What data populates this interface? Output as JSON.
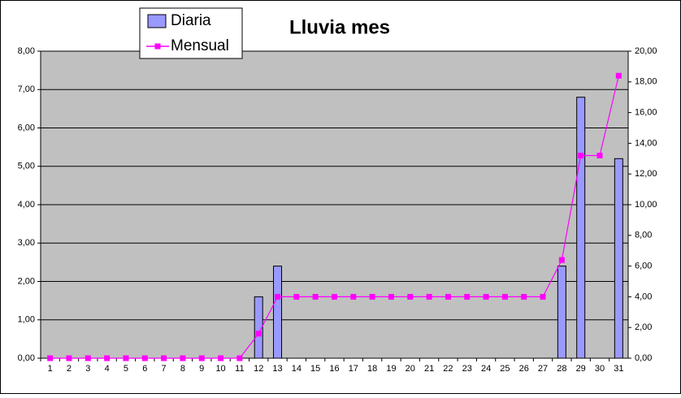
{
  "chart_data": {
    "type": "bar",
    "title": "Lluvia mes",
    "categories": [
      "1",
      "2",
      "3",
      "4",
      "5",
      "6",
      "7",
      "8",
      "9",
      "10",
      "11",
      "12",
      "13",
      "14",
      "15",
      "16",
      "17",
      "18",
      "19",
      "20",
      "21",
      "22",
      "23",
      "24",
      "25",
      "26",
      "27",
      "28",
      "29",
      "30",
      "31"
    ],
    "series": [
      {
        "name": "Diaria",
        "type": "bar",
        "color": "#9999ff",
        "values": [
          0,
          0,
          0,
          0,
          0,
          0,
          0,
          0,
          0,
          0,
          0,
          1.6,
          2.4,
          0,
          0,
          0,
          0,
          0,
          0,
          0,
          0,
          0,
          0,
          0,
          0,
          0,
          0,
          2.4,
          6.8,
          0,
          5.2
        ]
      },
      {
        "name": "Mensual",
        "type": "line",
        "axis": "y2",
        "color": "#ff00ff",
        "values": [
          0,
          0,
          0,
          0,
          0,
          0,
          0,
          0,
          0,
          0,
          0,
          1.6,
          4,
          4,
          4,
          4,
          4,
          4,
          4,
          4,
          4,
          4,
          4,
          4,
          4,
          4,
          4,
          6.4,
          13.2,
          13.2,
          18.4
        ]
      }
    ],
    "ylim": [
      0,
      8
    ],
    "yticks": [
      {
        "value": 0,
        "label": "0,00"
      },
      {
        "value": 1,
        "label": "1,00"
      },
      {
        "value": 2,
        "label": "2,00"
      },
      {
        "value": 3,
        "label": "3,00"
      },
      {
        "value": 4,
        "label": "4,00"
      },
      {
        "value": 5,
        "label": "5,00"
      },
      {
        "value": 6,
        "label": "6,00"
      },
      {
        "value": 7,
        "label": "7,00"
      },
      {
        "value": 8,
        "label": "8,00"
      }
    ],
    "y2lim": [
      0,
      20
    ],
    "y2ticks": [
      {
        "value": 0,
        "label": "0,00"
      },
      {
        "value": 2,
        "label": "2,00"
      },
      {
        "value": 4,
        "label": "4,00"
      },
      {
        "value": 6,
        "label": "6,00"
      },
      {
        "value": 8,
        "label": "8,00"
      },
      {
        "value": 10,
        "label": "10,00"
      },
      {
        "value": 12,
        "label": "12,00"
      },
      {
        "value": 14,
        "label": "14,00"
      },
      {
        "value": 16,
        "label": "16,00"
      },
      {
        "value": 18,
        "label": "18,00"
      },
      {
        "value": 20,
        "label": "20,00"
      }
    ],
    "grid": true,
    "plot_background": "#c0c0c0",
    "legend": "top-left"
  }
}
